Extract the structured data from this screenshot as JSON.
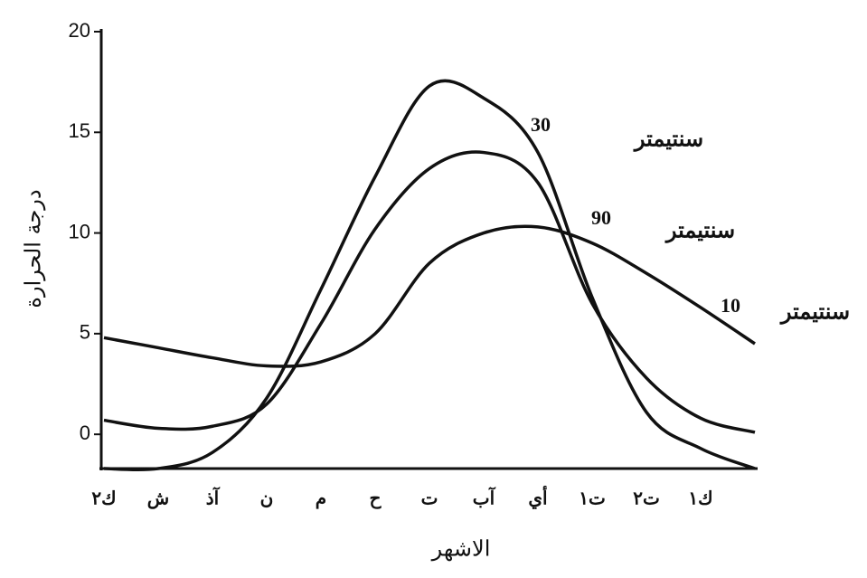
{
  "chart_data": {
    "type": "line",
    "y_label": "درجة الحرارة",
    "x_label": "الاشهر",
    "categories": [
      "ك٢",
      "ش",
      "آذ",
      "ن",
      "م",
      "ح",
      "ت",
      "آب",
      "أي",
      "ت١",
      "ت٢",
      "ك١",
      null
    ],
    "series": [
      {
        "name": "30",
        "unit": "سنتيمتر",
        "color": "#111111",
        "values": [
          -1.7,
          -1.7,
          -0.9,
          1.8,
          7.2,
          12.8,
          17.3,
          16.7,
          14,
          6.8,
          1.1,
          -0.7,
          -1.7
        ]
      },
      {
        "name": "90",
        "unit": "سنتيمتر",
        "color": "#111111",
        "values": [
          0.7,
          0.3,
          0.4,
          1.5,
          5.5,
          10.2,
          13.2,
          14,
          12.5,
          6.5,
          2.8,
          0.8,
          0.1
        ]
      },
      {
        "name": "10",
        "unit": "سنتيمتر",
        "color": "#111111",
        "values": [
          4.8,
          4.3,
          3.8,
          3.4,
          3.6,
          5,
          8.5,
          10,
          10.3,
          9.5,
          8,
          6.3,
          4.5
        ]
      }
    ],
    "ylim": [
      -1.7,
      20
    ],
    "yticks": [
      0,
      5,
      10,
      15,
      20
    ],
    "grid": false
  }
}
